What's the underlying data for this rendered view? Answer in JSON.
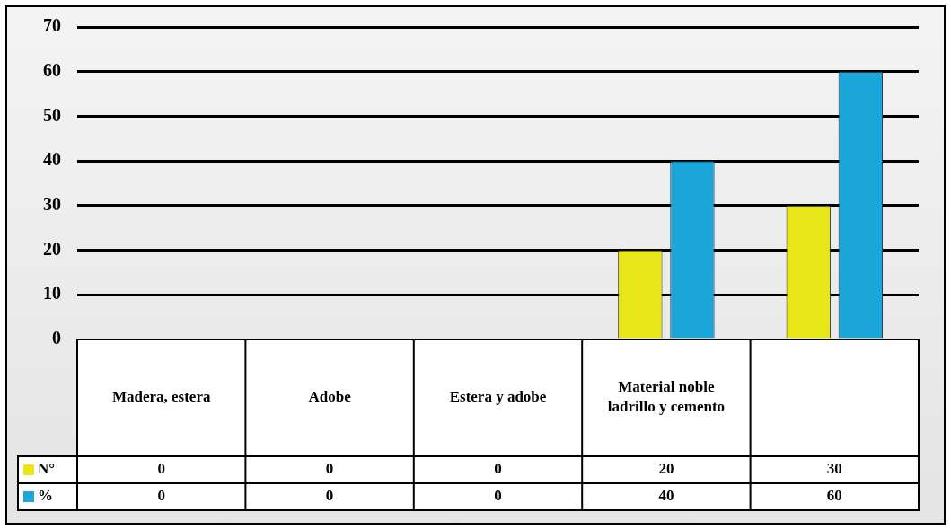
{
  "chart_data": {
    "type": "bar",
    "categories": [
      "Madera, estera",
      "Adobe",
      "Estera y adobe",
      "Material noble ladrillo y cemento",
      null
    ],
    "series": [
      {
        "name": "N°",
        "color": "#e6e619",
        "values": [
          0,
          0,
          0,
          20,
          30
        ]
      },
      {
        "name": "%",
        "color": "#1ba6d9",
        "values": [
          0,
          0,
          0,
          40,
          60
        ]
      }
    ],
    "ylim": [
      0,
      70
    ],
    "yticks": [
      0,
      10,
      20,
      30,
      40,
      50,
      60,
      70
    ],
    "grid": "y",
    "legend": "bottom",
    "data_labels": true
  }
}
